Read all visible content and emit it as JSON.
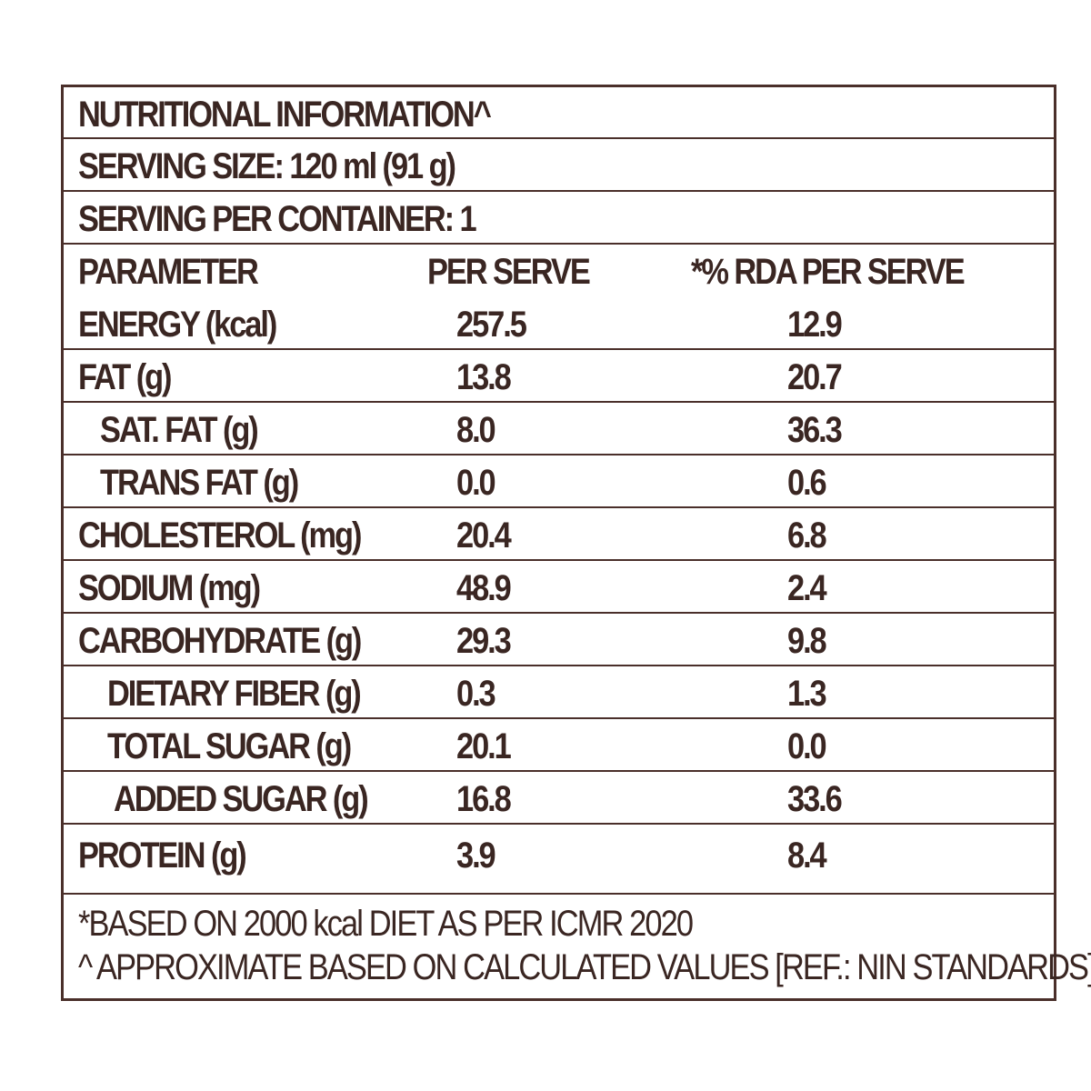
{
  "label": {
    "title": "NUTRITIONAL INFORMATION^",
    "serving_size": "SERVING SIZE: 120 ml (91 g)",
    "servings_per_container": "SERVING PER CONTAINER: 1",
    "columns": [
      "PARAMETER",
      "PER SERVE",
      "*% RDA PER SERVE"
    ],
    "rows": [
      {
        "parameter": "ENERGY (kcal)",
        "per_serve": "257.5",
        "rda": "12.9",
        "indent": 0
      },
      {
        "parameter": "FAT (g)",
        "per_serve": "13.8",
        "rda": "20.7",
        "indent": 0
      },
      {
        "parameter": "SAT. FAT (g)",
        "per_serve": "8.0",
        "rda": "36.3",
        "indent": 1
      },
      {
        "parameter": "TRANS FAT (g)",
        "per_serve": "0.0",
        "rda": "0.6",
        "indent": 1
      },
      {
        "parameter": "CHOLESTEROL (mg)",
        "per_serve": "20.4",
        "rda": "6.8",
        "indent": 0
      },
      {
        "parameter": "SODIUM (mg)",
        "per_serve": "48.9",
        "rda": "2.4",
        "indent": 0
      },
      {
        "parameter": "CARBOHYDRATE (g)",
        "per_serve": "29.3",
        "rda": "9.8",
        "indent": 0
      },
      {
        "parameter": "DIETARY FIBER (g)",
        "per_serve": "0.3",
        "rda": "1.3",
        "indent": 2
      },
      {
        "parameter": "TOTAL SUGAR (g)",
        "per_serve": "20.1",
        "rda": "0.0",
        "indent": 2
      },
      {
        "parameter": "ADDED SUGAR (g)",
        "per_serve": "16.8",
        "rda": "33.6",
        "indent": 3
      },
      {
        "parameter": "PROTEIN (g)",
        "per_serve": "3.9",
        "rda": "8.4",
        "indent": 0
      }
    ],
    "footnotes": [
      "*BASED ON 2000 kcal DIET AS PER ICMR 2020",
      "^ APPROXIMATE BASED ON CALCULATED VALUES [REF.: NIN STANDARDS]"
    ]
  },
  "colors": {
    "text": "#3a2622",
    "rule": "#4a2f2a",
    "background": "#ffffff"
  }
}
